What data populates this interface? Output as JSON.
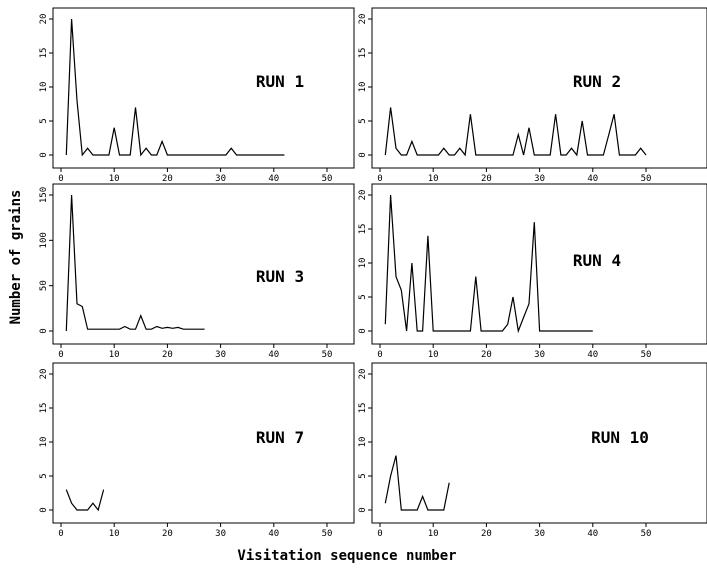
{
  "figure": {
    "xlabel": "Visitation sequence number",
    "ylabel": "Number of grains"
  },
  "chart_data": [
    {
      "type": "line",
      "title": "RUN 1",
      "xlim": [
        0,
        55
      ],
      "ylim": [
        0,
        20
      ],
      "xticks": [
        0,
        10,
        20,
        30,
        40,
        50
      ],
      "yticks": [
        0,
        5,
        10,
        15,
        20
      ],
      "series": [
        {
          "x": [
            1,
            2,
            3,
            4,
            5,
            6,
            7,
            8,
            9,
            10,
            11,
            12,
            13,
            14,
            15,
            16,
            17,
            18,
            19,
            20,
            21,
            22,
            23,
            24,
            25,
            26,
            27,
            28,
            29,
            30,
            31,
            32,
            33,
            34,
            35,
            36,
            37,
            38,
            39,
            40,
            41,
            42
          ],
          "y": [
            0,
            20,
            8,
            0,
            1,
            0,
            0,
            0,
            0,
            4,
            0,
            0,
            0,
            7,
            0,
            1,
            0,
            0,
            2,
            0,
            0,
            0,
            0,
            0,
            0,
            0,
            0,
            0,
            0,
            0,
            0,
            1,
            0,
            0,
            0,
            0,
            0,
            0,
            0,
            0,
            0,
            0
          ]
        }
      ]
    },
    {
      "type": "line",
      "title": "RUN 2",
      "xlim": [
        0,
        55
      ],
      "ylim": [
        0,
        20
      ],
      "xticks": [
        0,
        10,
        20,
        30,
        40,
        50
      ],
      "yticks": [
        0,
        5,
        10,
        15,
        20
      ],
      "series": [
        {
          "x": [
            1,
            2,
            3,
            4,
            5,
            6,
            7,
            8,
            9,
            10,
            11,
            12,
            13,
            14,
            15,
            16,
            17,
            18,
            19,
            20,
            21,
            22,
            23,
            24,
            25,
            26,
            27,
            28,
            29,
            30,
            31,
            32,
            33,
            34,
            35,
            36,
            37,
            38,
            39,
            40,
            41,
            42,
            43,
            44,
            45,
            46,
            47,
            48,
            49,
            50
          ],
          "y": [
            0,
            7,
            1,
            0,
            0,
            2,
            0,
            0,
            0,
            0,
            0,
            1,
            0,
            0,
            1,
            0,
            6,
            0,
            0,
            0,
            0,
            0,
            0,
            0,
            0,
            3,
            0,
            4,
            0,
            0,
            0,
            0,
            6,
            0,
            0,
            1,
            0,
            5,
            0,
            0,
            0,
            0,
            3,
            6,
            0,
            0,
            0,
            0,
            1,
            0
          ]
        }
      ]
    },
    {
      "type": "line",
      "title": "RUN 3",
      "xlim": [
        0,
        55
      ],
      "ylim": [
        0,
        150
      ],
      "xticks": [
        0,
        10,
        20,
        30,
        40,
        50
      ],
      "yticks": [
        0,
        50,
        100,
        150
      ],
      "series": [
        {
          "x": [
            1,
            2,
            3,
            4,
            5,
            6,
            7,
            8,
            9,
            10,
            11,
            12,
            13,
            14,
            15,
            16,
            17,
            18,
            19,
            20,
            21,
            22,
            23,
            24,
            25,
            26,
            27
          ],
          "y": [
            0,
            150,
            30,
            27,
            2,
            2,
            2,
            2,
            2,
            2,
            2,
            5,
            2,
            2,
            17,
            2,
            2,
            5,
            3,
            4,
            3,
            4,
            2,
            2,
            2,
            2,
            2
          ]
        }
      ]
    },
    {
      "type": "line",
      "title": "RUN 4",
      "xlim": [
        0,
        55
      ],
      "ylim": [
        0,
        20
      ],
      "xticks": [
        0,
        10,
        20,
        30,
        40,
        50
      ],
      "yticks": [
        0,
        5,
        10,
        15,
        20
      ],
      "series": [
        {
          "x": [
            1,
            2,
            3,
            4,
            5,
            6,
            7,
            8,
            9,
            10,
            11,
            12,
            13,
            14,
            15,
            16,
            17,
            18,
            19,
            20,
            21,
            22,
            23,
            24,
            25,
            26,
            27,
            28,
            29,
            30,
            31,
            32,
            33,
            34,
            35,
            36,
            37,
            38,
            39,
            40
          ],
          "y": [
            1,
            20,
            8,
            6,
            0,
            10,
            0,
            0,
            14,
            0,
            0,
            0,
            0,
            0,
            0,
            0,
            0,
            8,
            0,
            0,
            0,
            0,
            0,
            1,
            5,
            0,
            2,
            4,
            16,
            0,
            0,
            0,
            0,
            0,
            0,
            0,
            0,
            0,
            0,
            0
          ]
        }
      ]
    },
    {
      "type": "line",
      "title": "RUN 7",
      "xlim": [
        0,
        55
      ],
      "ylim": [
        0,
        20
      ],
      "xticks": [
        0,
        10,
        20,
        30,
        40,
        50
      ],
      "yticks": [
        0,
        5,
        10,
        15,
        20
      ],
      "series": [
        {
          "x": [
            1,
            2,
            3,
            4,
            5,
            6,
            7,
            8
          ],
          "y": [
            3,
            1,
            0,
            0,
            0,
            1,
            0,
            3
          ]
        }
      ]
    },
    {
      "type": "line",
      "title": "RUN 10",
      "xlim": [
        0,
        55
      ],
      "ylim": [
        0,
        20
      ],
      "xticks": [
        0,
        10,
        20,
        30,
        40,
        50
      ],
      "yticks": [
        0,
        5,
        10,
        15,
        20
      ],
      "series": [
        {
          "x": [
            1,
            2,
            3,
            4,
            5,
            6,
            7,
            8,
            9,
            10,
            11,
            12,
            13
          ],
          "y": [
            1,
            5,
            8,
            0,
            0,
            0,
            0,
            2,
            0,
            0,
            0,
            0,
            4
          ]
        }
      ]
    }
  ]
}
